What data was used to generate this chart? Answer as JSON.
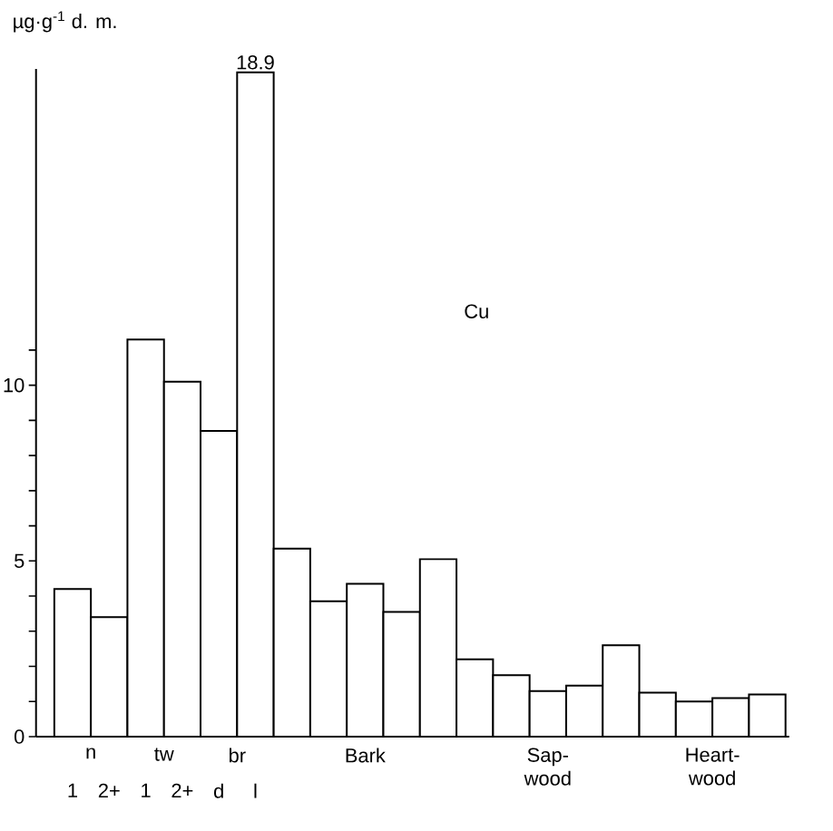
{
  "chart_data": {
    "type": "bar",
    "title": "Cu",
    "ylabel": "µg·g$^{-1}$ d. m.",
    "categories": [
      "1",
      "2+",
      "1",
      "2+",
      "d",
      "l",
      null,
      null,
      null,
      null,
      null,
      null,
      null,
      null,
      null,
      null,
      null,
      null,
      null,
      null
    ],
    "series": [
      {
        "name": "n",
        "color": "#ffffff",
        "values": [
          4.2,
          3.4,
          null,
          null,
          null,
          null,
          null,
          null,
          null,
          null,
          null,
          null,
          null,
          null,
          null,
          null,
          null,
          null,
          null,
          null
        ]
      },
      {
        "name": "tw",
        "color": "#ffffff",
        "values": [
          null,
          null,
          11.3,
          10.1,
          null,
          null,
          null,
          null,
          null,
          null,
          null,
          null,
          null,
          null,
          null,
          null,
          null,
          null,
          null,
          null
        ]
      },
      {
        "name": "br",
        "color": "#ffffff",
        "values": [
          null,
          null,
          null,
          null,
          8.7,
          18.9,
          null,
          null,
          null,
          null,
          null,
          null,
          null,
          null,
          null,
          null,
          null,
          null,
          null,
          null
        ],
        "value_labels": [
          null,
          null,
          null,
          null,
          null,
          "18.9",
          null,
          null,
          null,
          null,
          null,
          null,
          null,
          null,
          null,
          null,
          null,
          null,
          null,
          null
        ]
      },
      {
        "name": "Bark",
        "color": "#ffffff",
        "values": [
          null,
          null,
          null,
          null,
          null,
          null,
          5.35,
          3.85,
          4.35,
          3.55,
          5.05,
          null,
          null,
          null,
          null,
          null,
          null,
          null,
          null,
          null
        ]
      },
      {
        "name": "Sap- wood",
        "color": "#ffffff",
        "values": [
          null,
          null,
          null,
          null,
          null,
          null,
          null,
          null,
          null,
          null,
          null,
          2.2,
          1.75,
          1.3,
          1.45,
          2.6,
          null,
          null,
          null,
          null
        ]
      },
      {
        "name": "Heart- wood",
        "color": "#ffffff",
        "values": [
          null,
          null,
          null,
          null,
          null,
          null,
          null,
          null,
          null,
          null,
          null,
          null,
          null,
          null,
          null,
          null,
          1.25,
          1.0,
          1.1,
          1.2
        ]
      }
    ],
    "ylim": [
      0,
      19
    ],
    "yticks": [
      0,
      {
        "value": 1,
        "label": null
      },
      {
        "value": 2,
        "label": null
      },
      {
        "value": 3,
        "label": null
      },
      {
        "value": 4,
        "label": null
      },
      5,
      {
        "value": 6,
        "label": null
      },
      {
        "value": 7,
        "label": null
      },
      {
        "value": 8,
        "label": null
      },
      {
        "value": 9,
        "label": null
      },
      10,
      {
        "value": 11,
        "label": null
      }
    ],
    "grid": false
  }
}
